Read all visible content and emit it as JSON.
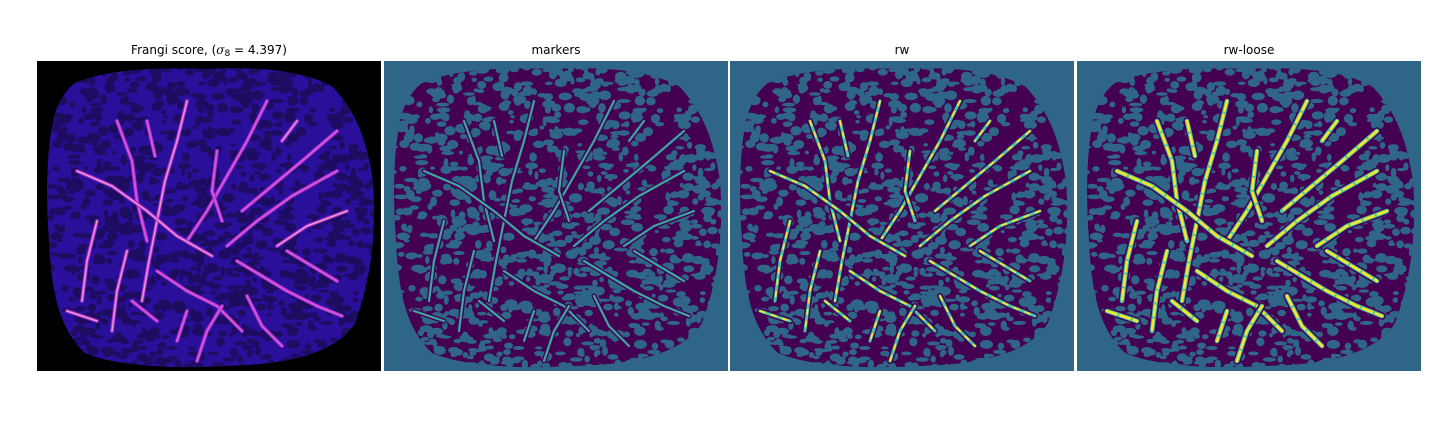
{
  "figure": {
    "panels": [
      {
        "id": "frangi",
        "title_prefix": "Frangi score, (",
        "title_sigma": "σ",
        "title_subscript": "8",
        "title_suffix": " = 4.397)",
        "colormap": "magma",
        "background_color": "#000000",
        "tissue_color": "#2a0f9a",
        "vessel_colors": [
          "#8c2fd0",
          "#d94fd6",
          "#f7a6c0"
        ]
      },
      {
        "id": "markers",
        "title": "markers",
        "colormap": "viridis",
        "background_color": "#2f6688",
        "tissue_color": "#440154",
        "vessel_color": "#3ba8a0"
      },
      {
        "id": "rw",
        "title": "rw",
        "colormap": "viridis",
        "background_color": "#2f6688",
        "tissue_color": "#440154",
        "vessel_colors": [
          "#49c4a4",
          "#fde725"
        ]
      },
      {
        "id": "rw-loose",
        "title": "rw-loose",
        "colormap": "viridis",
        "background_color": "#2f6688",
        "tissue_color": "#440154",
        "vessel_colors": [
          "#49c4a4",
          "#fde725"
        ]
      }
    ]
  }
}
